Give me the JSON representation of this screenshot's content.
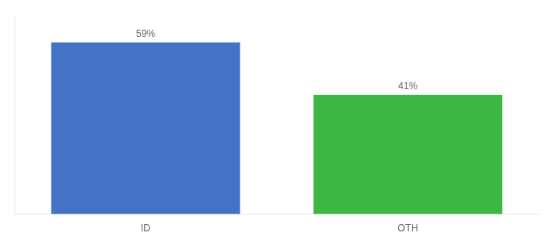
{
  "chart_data": {
    "type": "bar",
    "categories": [
      "ID",
      "OTH"
    ],
    "values": [
      59,
      41
    ],
    "value_labels": [
      "59%",
      "41%"
    ],
    "colors": [
      "#4472C4",
      "#3CB843"
    ],
    "ylim": [
      0,
      68
    ],
    "grid": false,
    "data_labels": true,
    "tick_labels": "x"
  }
}
